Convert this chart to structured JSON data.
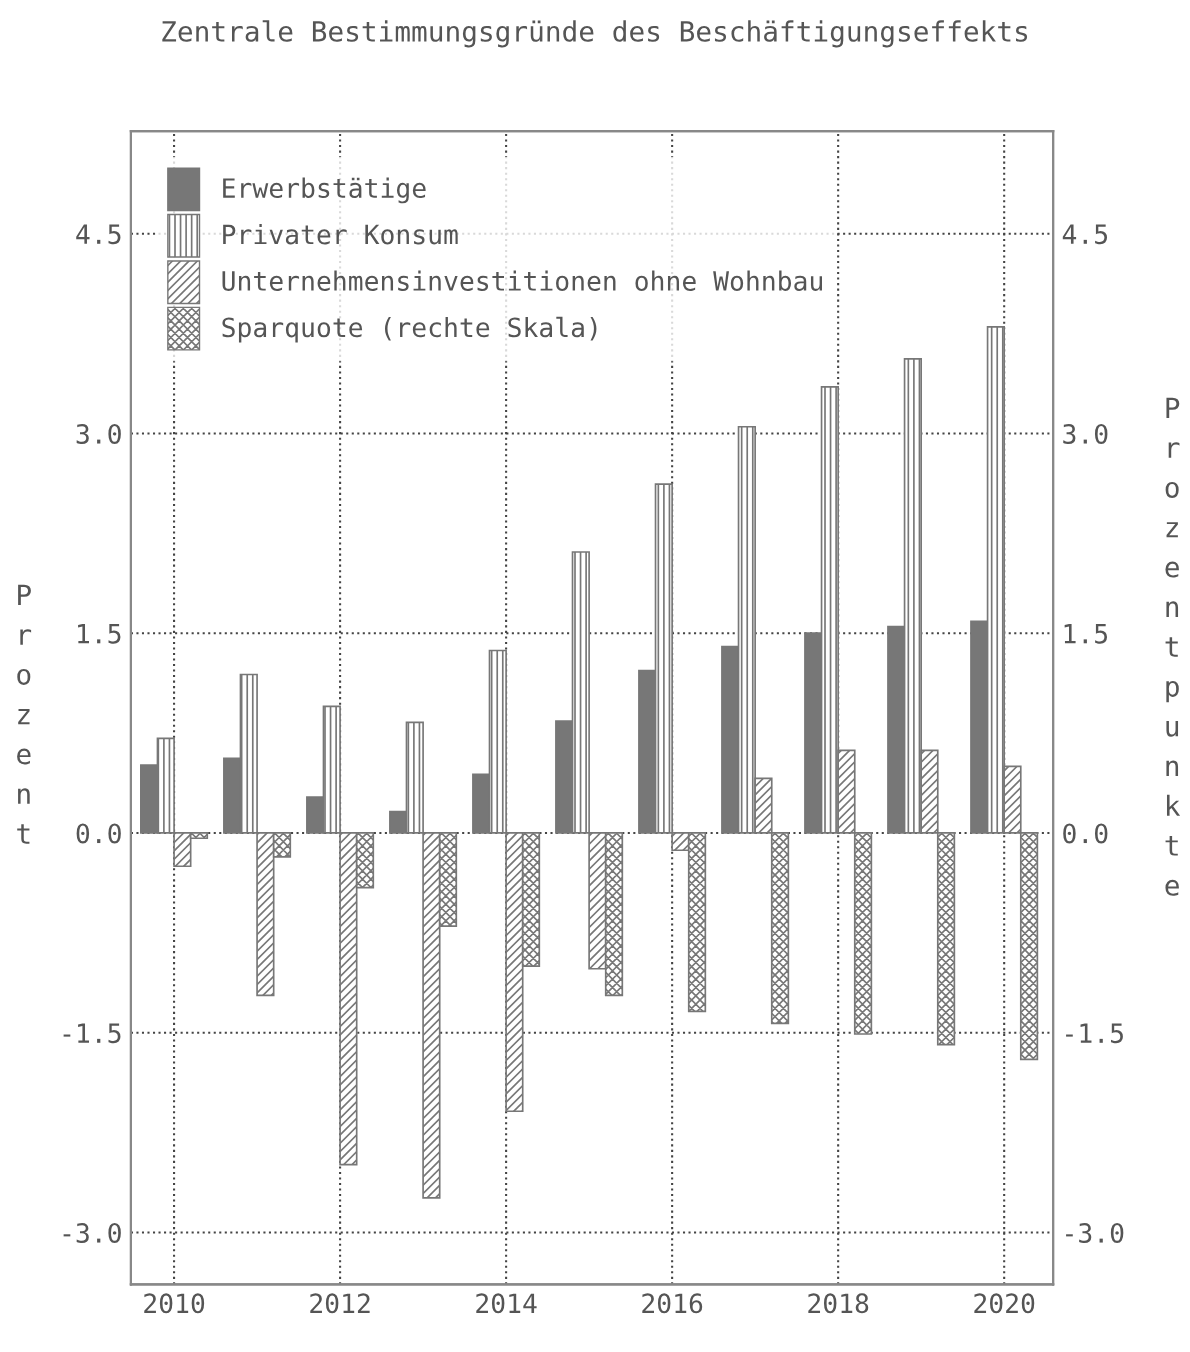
{
  "chart_data": {
    "type": "bar",
    "title": "Zentrale Bestimmungsgründe des Beschäftigungseffekts",
    "ylabel": "Prozent",
    "y2label": "Prozentpunkte",
    "x": [
      2010,
      2011,
      2012,
      2013,
      2014,
      2015,
      2016,
      2017,
      2018,
      2019,
      2020
    ],
    "xlim": [
      2009.48,
      2020.59
    ],
    "xticks": [
      2010,
      2012,
      2014,
      2016,
      2018,
      2020
    ],
    "ylim": [
      -3.39,
      5.27
    ],
    "yticks": [
      {
        "value": -3.0,
        "label": "-3.0"
      },
      {
        "value": -1.5,
        "label": "-1.5"
      },
      {
        "value": 0,
        "label": "0.0"
      },
      {
        "value": 1.5,
        "label": "1.5"
      },
      {
        "value": 3.0,
        "label": "3.0"
      },
      {
        "value": 4.5,
        "label": "4.5"
      }
    ],
    "y2lim": [
      -3.39,
      5.27
    ],
    "y2ticks": [
      {
        "value": -3.0,
        "label": "-3.0"
      },
      {
        "value": -1.5,
        "label": "-1.5"
      },
      {
        "value": 0,
        "label": "0.0"
      },
      {
        "value": 1.5,
        "label": "1.5"
      },
      {
        "value": 3.0,
        "label": "3.0"
      },
      {
        "value": 4.5,
        "label": "4.5"
      }
    ],
    "grid": true,
    "legend": "top left",
    "series": [
      {
        "name": "Erwerbstätige",
        "color": "#777777",
        "values": [
          0.51,
          0.56,
          0.27,
          0.16,
          0.44,
          0.84,
          1.22,
          1.4,
          1.5,
          1.55,
          1.59
        ]
      },
      {
        "name": "Privater Konsum",
        "color": "#777777",
        "values": [
          0.71,
          1.19,
          0.95,
          0.83,
          1.37,
          2.11,
          2.62,
          3.05,
          3.35,
          3.56,
          3.8
        ]
      },
      {
        "name": "Unternehmensinvestitionen ohne Wohnbau",
        "color": "#777777",
        "values": [
          -0.25,
          -1.22,
          -2.49,
          -2.74,
          -2.09,
          -1.02,
          -0.13,
          0.41,
          0.62,
          0.62,
          0.5
        ]
      },
      {
        "name": "Sparquote (rechte Skala)",
        "color": "#777777",
        "values": [
          -0.04,
          -0.18,
          -0.41,
          -0.7,
          -1.0,
          -1.22,
          -1.34,
          -1.43,
          -1.51,
          -1.59,
          -1.7
        ]
      }
    ]
  }
}
